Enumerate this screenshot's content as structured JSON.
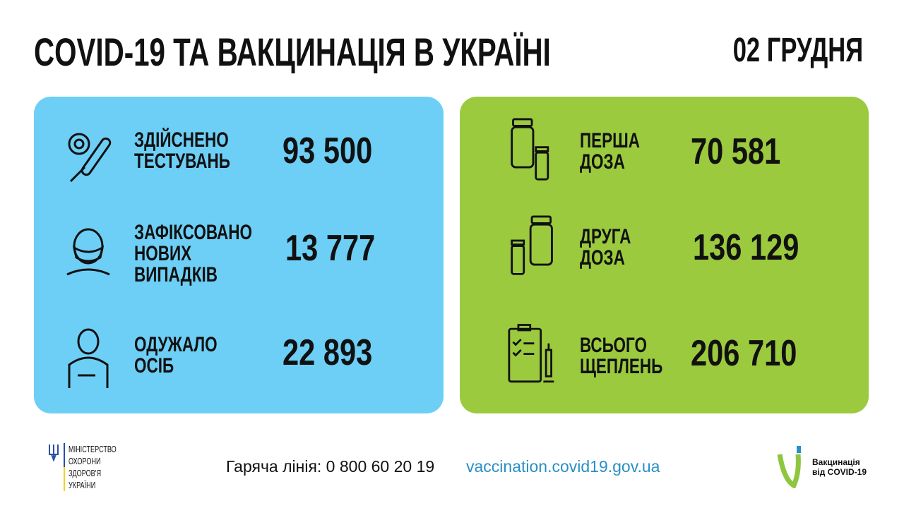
{
  "header": {
    "title": "COVID-19 ТА ВАКЦИНАЦІЯ В УКРАЇНІ",
    "date": "02 ГРУДНЯ"
  },
  "colors": {
    "left_panel": "#6dcff6",
    "right_panel": "#9bca3e",
    "link": "#2a8fc4"
  },
  "left": [
    {
      "icon": "test-tube-icon",
      "label": [
        "ЗДІЙСНЕНО",
        "ТЕСТУВАНЬ"
      ],
      "value": "93 500"
    },
    {
      "icon": "masked-person-icon",
      "label": [
        "ЗАФІКСОВАНО",
        "НОВИХ",
        "ВИПАДКІВ"
      ],
      "value": "13 777"
    },
    {
      "icon": "recovered-person-icon",
      "label": [
        "ОДУЖАЛО",
        "ОСІБ"
      ],
      "value": "22 893"
    }
  ],
  "right": [
    {
      "icon": "vials-icon",
      "label": [
        "ПЕРША",
        "ДОЗА"
      ],
      "value": "70 581"
    },
    {
      "icon": "vials-icon",
      "label": [
        "ДРУГА",
        "ДОЗА"
      ],
      "value": "136 129"
    },
    {
      "icon": "clipboard-syringe-icon",
      "label": [
        "ВСЬОГО",
        "ЩЕПЛЕНЬ"
      ],
      "value": "206 710"
    }
  ],
  "footer": {
    "ministry": [
      "МІНІСТЕРСТВО",
      "ОХОРОНИ",
      "ЗДОРОВ'Я",
      "УКРАЇНИ"
    ],
    "hotline": "Гаряча лінія: 0 800 60 20 19",
    "website": "vaccination.covid19.gov.ua",
    "vacc_logo": [
      "Вакцинація",
      "від COVID-19"
    ]
  }
}
